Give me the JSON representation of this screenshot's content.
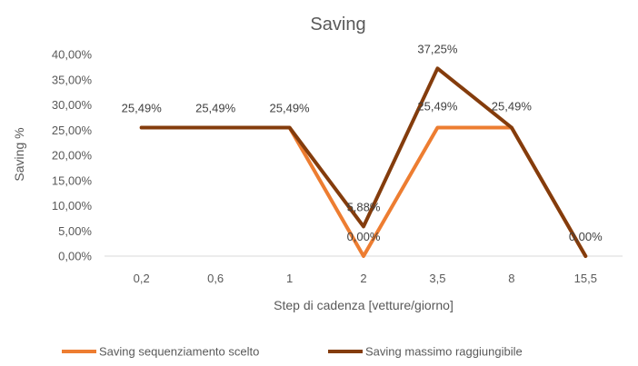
{
  "chart_data": {
    "type": "line",
    "title": "Saving",
    "xlabel": "Step di cadenza [vetture/giorno]",
    "ylabel": "Saving %",
    "categories": [
      "0,2",
      "0,6",
      "1",
      "2",
      "3,5",
      "8",
      "15,5"
    ],
    "ylim": [
      0,
      40
    ],
    "yticks": [
      0,
      5,
      10,
      15,
      20,
      25,
      30,
      35,
      40
    ],
    "ytick_labels": [
      "0,00%",
      "5,00%",
      "10,00%",
      "15,00%",
      "20,00%",
      "25,00%",
      "30,00%",
      "35,00%",
      "40,00%"
    ],
    "grid": false,
    "legend_position": "bottom",
    "series": [
      {
        "name": "Saving sequenziamento scelto",
        "color": "#ED7D31",
        "values": [
          25.49,
          25.49,
          25.49,
          0.0,
          25.49,
          25.49,
          0.0
        ],
        "labels": [
          "",
          "",
          "",
          "0,00%",
          "25,49%",
          "25,49%",
          "0,00%"
        ]
      },
      {
        "name": "Saving massimo raggiungibile",
        "color": "#843C0C",
        "values": [
          25.49,
          25.49,
          25.49,
          5.88,
          37.25,
          25.49,
          0.0
        ],
        "labels": [
          "25,49%",
          "25,49%",
          "25,49%",
          "5,88%",
          "37,25%",
          "",
          ""
        ]
      }
    ]
  }
}
